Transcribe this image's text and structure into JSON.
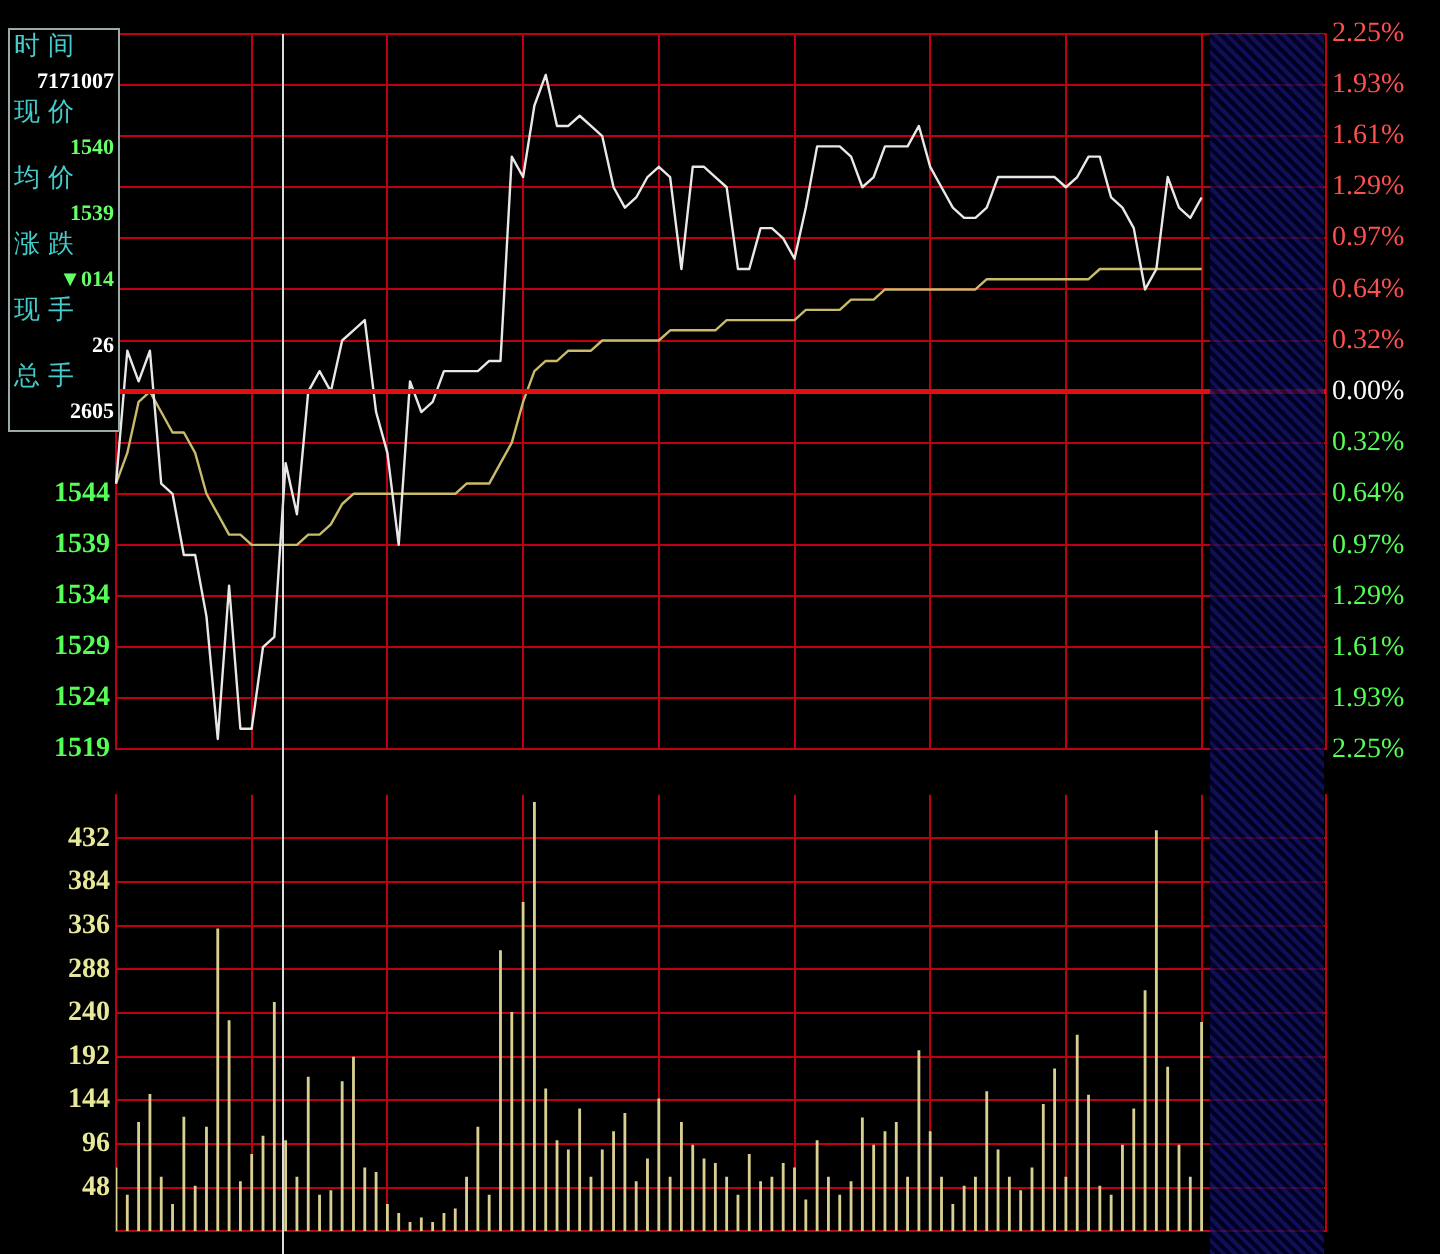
{
  "chart_data": [
    {
      "type": "line",
      "categories": [
        null,
        null,
        null,
        null,
        null,
        null,
        null,
        null,
        null,
        null,
        null,
        null,
        null,
        null,
        null,
        null,
        null,
        null,
        null,
        null,
        null,
        null,
        null,
        null,
        null,
        null,
        null,
        null,
        null,
        null,
        null,
        null,
        null,
        null,
        null,
        null,
        null,
        null,
        null,
        null,
        null,
        null,
        null,
        null,
        null,
        null,
        null,
        null,
        null,
        null,
        null,
        null,
        null,
        null,
        null,
        null,
        null,
        null,
        null,
        null,
        null,
        null,
        null,
        null,
        null,
        null,
        null,
        null,
        null,
        null,
        null,
        null,
        null,
        null,
        null,
        null,
        null,
        null,
        null,
        null,
        null,
        null,
        null,
        null,
        null,
        null,
        null,
        null,
        null,
        null,
        null,
        null,
        null,
        null,
        null,
        null,
        null,
        null,
        null,
        null,
        null,
        null,
        null,
        null,
        null,
        null,
        null,
        null
      ],
      "series": [
        {
          "color": "#e8e8e8",
          "values": [
            1545,
            1558,
            1555,
            1558,
            1545,
            1544,
            1538,
            1538,
            1532,
            1520,
            1535,
            1521,
            1521,
            1529,
            1530,
            1547,
            1542,
            1554,
            1556,
            1554,
            1559,
            1560,
            1561,
            1552,
            1548,
            1539,
            1555,
            1552,
            1553,
            1556,
            1556,
            1556,
            1556,
            1557,
            1557,
            1577,
            1575,
            1582,
            1585,
            1580,
            1580,
            1581,
            1580,
            1579,
            1574,
            1572,
            1573,
            1575,
            1576,
            1575,
            1566,
            1576,
            1576,
            1575,
            1574,
            1566,
            1566,
            1570,
            1570,
            1569,
            1567,
            1572,
            1578,
            1578,
            1578,
            1577,
            1574,
            1575,
            1578,
            1578,
            1578,
            1580,
            1576,
            1574,
            1572,
            1571,
            1571,
            1572,
            1575,
            1575,
            1575,
            1575,
            1575,
            1575,
            1574,
            1575,
            1577,
            1577,
            1573,
            1572,
            1570,
            1564,
            1566,
            1575,
            1572,
            1571,
            1573,
            null,
            null,
            null,
            null,
            null,
            null,
            null,
            null,
            null,
            null,
            null
          ]
        },
        {
          "color": "#c8bc6a",
          "values": [
            1545,
            1548,
            1553,
            1554,
            1552,
            1550,
            1550,
            1548,
            1544,
            1542,
            1540,
            1540,
            1539,
            1539,
            1539,
            1539,
            1539,
            1540,
            1540,
            1541,
            1543,
            1544,
            1544,
            1544,
            1544,
            1544,
            1544,
            1544,
            1544,
            1544,
            1544,
            1545,
            1545,
            1545,
            1547,
            1549,
            1553,
            1556,
            1557,
            1557,
            1558,
            1558,
            1558,
            1559,
            1559,
            1559,
            1559,
            1559,
            1559,
            1560,
            1560,
            1560,
            1560,
            1560,
            1561,
            1561,
            1561,
            1561,
            1561,
            1561,
            1561,
            1562,
            1562,
            1562,
            1562,
            1563,
            1563,
            1563,
            1564,
            1564,
            1564,
            1564,
            1564,
            1564,
            1564,
            1564,
            1564,
            1565,
            1565,
            1565,
            1565,
            1565,
            1565,
            1565,
            1565,
            1565,
            1565,
            1566,
            1566,
            1566,
            1566,
            1566,
            1566,
            1566,
            1566,
            1566,
            1566,
            null,
            null,
            null,
            null,
            null,
            null,
            null,
            null,
            null,
            null,
            null
          ]
        }
      ],
      "ylim": [
        1519,
        1589
      ],
      "yticks": [
        1519,
        1524,
        1529,
        1534,
        1539,
        1544,
        {
          "value": 1549,
          "label": null
        },
        {
          "value": 1554,
          "label": null
        },
        {
          "value": 1559,
          "label": null
        },
        {
          "value": 1564,
          "label": null
        },
        {
          "value": 1569,
          "label": null
        },
        {
          "value": 1574,
          "label": null
        },
        {
          "value": 1579,
          "label": null
        },
        {
          "value": 1584,
          "label": null
        },
        {
          "value": 1589,
          "label": null
        }
      ],
      "y2lim": [
        -2.25,
        2.25
      ],
      "y2ticks": [
        {
          "value": 2.25,
          "label": "2.25%"
        },
        {
          "value": 1.93,
          "label": "1.93%"
        },
        {
          "value": 1.61,
          "label": "1.61%"
        },
        {
          "value": 1.29,
          "label": "1.29%"
        },
        {
          "value": 0.97,
          "label": "0.97%"
        },
        {
          "value": 0.64,
          "label": "0.64%"
        },
        {
          "value": 0.32,
          "label": "0.32%"
        },
        {
          "value": 0,
          "label": "0.00%"
        },
        {
          "value": -0.32,
          "label": "0.32%"
        },
        {
          "value": -0.64,
          "label": "0.64%"
        },
        {
          "value": -0.97,
          "label": "0.97%"
        },
        {
          "value": -1.29,
          "label": "1.29%"
        },
        {
          "value": -1.61,
          "label": "1.61%"
        },
        {
          "value": -1.93,
          "label": "1.93%"
        },
        {
          "value": -2.25,
          "label": "2.25%"
        }
      ],
      "ref_lines": [
        {
          "axis": "y2",
          "value": 0,
          "color": "#e01010"
        }
      ],
      "grid": true,
      "legend": false,
      "marker": "none",
      "line_style": "solid",
      "annotations": [
        "时间",
        "7171007",
        "现价",
        "1540",
        "均价",
        "1539",
        "涨跌",
        "▼014",
        "现手",
        "26",
        "总手",
        "2605"
      ]
    },
    {
      "type": "bar",
      "categories": [
        null,
        null,
        null,
        null,
        null,
        null,
        null,
        null,
        null,
        null,
        null,
        null,
        null,
        null,
        null,
        null,
        null,
        null,
        null,
        null,
        null,
        null,
        null,
        null,
        null,
        null,
        null,
        null,
        null,
        null,
        null,
        null,
        null,
        null,
        null,
        null,
        null,
        null,
        null,
        null,
        null,
        null,
        null,
        null,
        null,
        null,
        null,
        null,
        null,
        null,
        null,
        null,
        null,
        null,
        null,
        null,
        null,
        null,
        null,
        null,
        null,
        null,
        null,
        null,
        null,
        null,
        null,
        null,
        null,
        null,
        null,
        null,
        null,
        null,
        null,
        null,
        null,
        null,
        null,
        null,
        null,
        null,
        null,
        null,
        null,
        null,
        null,
        null,
        null,
        null,
        null,
        null,
        null,
        null,
        null,
        null,
        null,
        null,
        null,
        null,
        null,
        null,
        null,
        null,
        null,
        null,
        null,
        null
      ],
      "values": [
        70,
        40,
        120,
        151,
        60,
        30,
        126,
        50,
        115,
        333,
        232,
        55,
        85,
        105,
        252,
        100,
        60,
        170,
        40,
        45,
        165,
        192,
        70,
        65,
        30,
        20,
        10,
        15,
        10,
        20,
        25,
        60,
        115,
        40,
        309,
        241,
        362,
        472,
        157,
        100,
        90,
        135,
        60,
        90,
        110,
        130,
        55,
        80,
        146,
        60,
        120,
        95,
        80,
        75,
        60,
        40,
        85,
        55,
        60,
        75,
        70,
        35,
        100,
        60,
        40,
        55,
        125,
        95,
        110,
        120,
        60,
        199,
        110,
        60,
        30,
        50,
        60,
        154,
        90,
        60,
        45,
        70,
        140,
        179,
        60,
        216,
        150,
        50,
        40,
        95,
        135,
        265,
        441,
        181,
        95,
        60,
        230,
        null,
        null,
        null,
        null,
        null,
        null,
        null,
        null,
        null,
        null,
        null
      ],
      "color": "#d8d090",
      "ylim": [
        0,
        480
      ],
      "yticks": [
        48,
        96,
        144,
        192,
        240,
        288,
        336,
        384,
        432
      ],
      "grid": true,
      "legend": false,
      "tick_labels": "y"
    }
  ]
}
